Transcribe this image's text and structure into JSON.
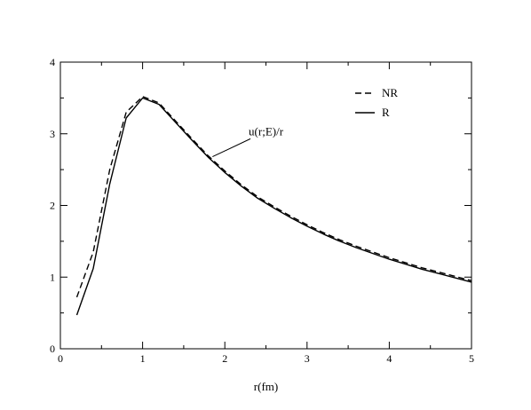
{
  "chart_data": {
    "type": "line",
    "title": "",
    "xlabel": "r(fm)",
    "ylabel": "",
    "xlim": [
      0,
      5
    ],
    "ylim": [
      0,
      4
    ],
    "xticks": [
      0,
      1,
      2,
      3,
      4,
      5
    ],
    "yticks": [
      0,
      1,
      2,
      3,
      4
    ],
    "grid": false,
    "legend_position": "top-right",
    "series": [
      {
        "name": "NR",
        "style": "dashed",
        "color": "#000000",
        "x": [
          0.2,
          0.4,
          0.6,
          0.8,
          1.0,
          1.2,
          1.4,
          1.6,
          1.8,
          2.0,
          2.2,
          2.4,
          2.6,
          2.8,
          3.0,
          3.2,
          3.4,
          3.6,
          3.8,
          4.0,
          4.2,
          4.4,
          4.6,
          4.8,
          5.0
        ],
        "y": [
          0.72,
          1.35,
          2.5,
          3.3,
          3.52,
          3.43,
          3.18,
          2.93,
          2.69,
          2.48,
          2.29,
          2.12,
          1.98,
          1.85,
          1.73,
          1.62,
          1.52,
          1.43,
          1.35,
          1.27,
          1.2,
          1.13,
          1.07,
          1.01,
          0.95
        ]
      },
      {
        "name": "R",
        "style": "solid",
        "color": "#000000",
        "x": [
          0.2,
          0.4,
          0.6,
          0.8,
          1.0,
          1.2,
          1.4,
          1.6,
          1.8,
          2.0,
          2.2,
          2.4,
          2.6,
          2.8,
          3.0,
          3.2,
          3.4,
          3.6,
          3.8,
          4.0,
          4.2,
          4.4,
          4.6,
          4.8,
          5.0
        ],
        "y": [
          0.47,
          1.12,
          2.3,
          3.22,
          3.5,
          3.41,
          3.16,
          2.91,
          2.67,
          2.46,
          2.27,
          2.1,
          1.96,
          1.83,
          1.71,
          1.6,
          1.5,
          1.41,
          1.33,
          1.25,
          1.18,
          1.11,
          1.05,
          0.99,
          0.93
        ]
      }
    ],
    "annotations": [
      {
        "text": "u(r;E)/r",
        "x": 2.29,
        "y": 2.98,
        "pointer_to": [
          1.85,
          2.68
        ]
      }
    ]
  }
}
